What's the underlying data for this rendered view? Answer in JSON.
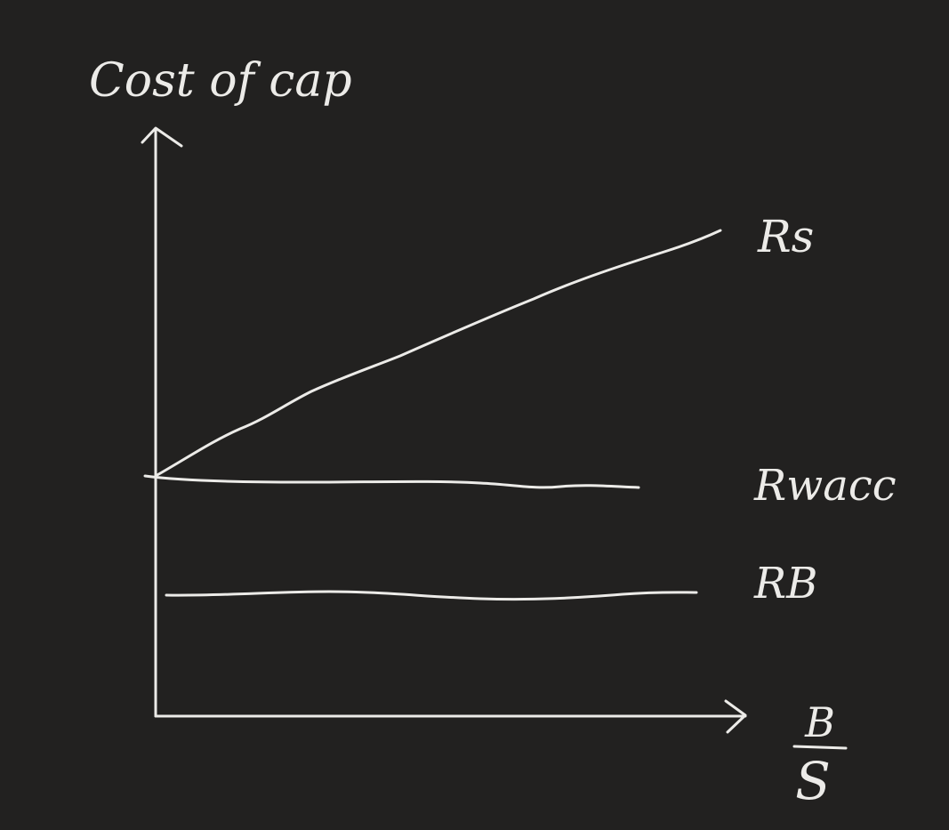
{
  "diagram": {
    "y_axis_label": "Cost of cap",
    "x_axis_label_numerator": "B",
    "x_axis_label_denominator": "S",
    "curves": [
      {
        "id": "rs",
        "label": "Rs",
        "trend": "increasing"
      },
      {
        "id": "rwacc",
        "label": "Rwacc",
        "trend": "flat"
      },
      {
        "id": "rb",
        "label": "RB",
        "trend": "flat"
      }
    ]
  },
  "colors": {
    "background": "#222120",
    "ink": "#ecebe8"
  }
}
